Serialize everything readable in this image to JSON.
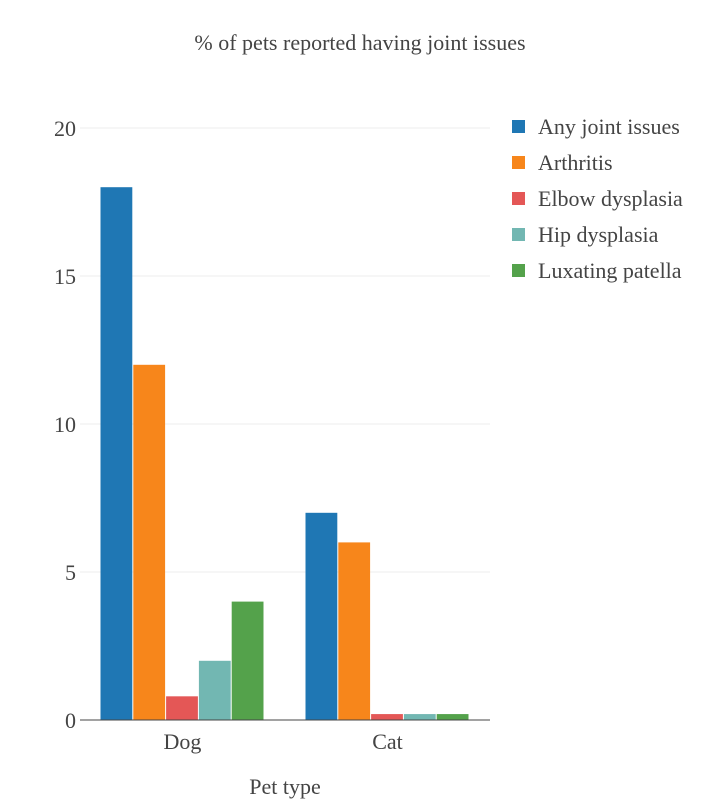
{
  "chart_data": {
    "type": "bar",
    "title": "% of pets reported having joint issues",
    "xlabel": "Pet type",
    "ylabel": "",
    "categories": [
      "Dog",
      "Cat"
    ],
    "ylim": [
      0,
      20
    ],
    "yticks": [
      0,
      5,
      10,
      15,
      20
    ],
    "grid": true,
    "legend_position": "top-right",
    "series": [
      {
        "name": "Any joint issues",
        "values": [
          18,
          7
        ],
        "color": "#1f77b4"
      },
      {
        "name": "Arthritis",
        "values": [
          12,
          6
        ],
        "color": "#f7861b"
      },
      {
        "name": "Elbow dysplasia",
        "values": [
          0.8,
          0.2
        ],
        "color": "#e45756"
      },
      {
        "name": "Hip dysplasia",
        "values": [
          2,
          0.2
        ],
        "color": "#72b7b2"
      },
      {
        "name": "Luxating patella",
        "values": [
          4,
          0.2
        ],
        "color": "#54a24b"
      }
    ]
  }
}
